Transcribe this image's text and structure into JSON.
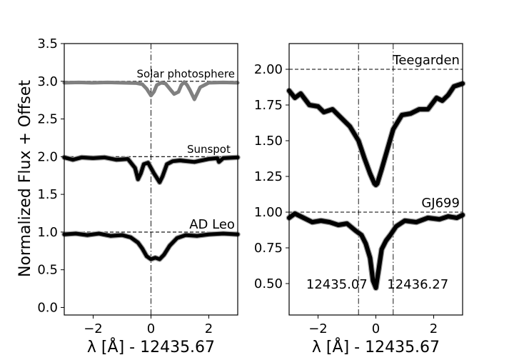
{
  "figure": {
    "ylabel": "Normalized Flux + Offset"
  },
  "chart_data": [
    {
      "type": "line",
      "panel": "left",
      "xlabel": "λ [Å] - 12435.67",
      "ylabel": "Normalized Flux + Offset",
      "xlim": [
        -3,
        3
      ],
      "ylim": [
        -0.1,
        3.5
      ],
      "xticks": [
        -2,
        0,
        2
      ],
      "xtick_labels": [
        "−2",
        "0",
        "2"
      ],
      "yticks": [
        0.0,
        0.5,
        1.0,
        1.5,
        2.0,
        2.5,
        3.0,
        3.5
      ],
      "ytick_labels": [
        "0.0",
        "0.5",
        "1.0",
        "1.5",
        "2.0",
        "2.5",
        "3.0",
        "3.5"
      ],
      "grid": false,
      "reference_lines": [
        {
          "y": 3.0,
          "style": "dashed"
        },
        {
          "y": 2.0,
          "style": "dashed"
        },
        {
          "y": 1.0,
          "style": "dashed"
        },
        {
          "x": 0.0,
          "style": "dashdot"
        }
      ],
      "series": [
        {
          "name": "Solar photosphere",
          "color": "#808080",
          "x": [
            -3.0,
            -2.5,
            -2.0,
            -1.5,
            -1.0,
            -0.5,
            -0.3,
            -0.15,
            0.0,
            0.1,
            0.2,
            0.35,
            0.5,
            0.65,
            0.8,
            0.95,
            1.05,
            1.15,
            1.25,
            1.35,
            1.5,
            1.7,
            2.0,
            2.5,
            3.0
          ],
          "y": [
            2.98,
            2.985,
            2.98,
            2.985,
            2.98,
            2.975,
            2.96,
            2.9,
            2.81,
            2.86,
            2.95,
            2.98,
            2.97,
            2.9,
            2.83,
            2.86,
            2.95,
            2.99,
            2.95,
            2.88,
            2.76,
            2.92,
            2.98,
            2.985,
            2.98
          ]
        },
        {
          "name": "Sunspot",
          "color": "#000000",
          "x": [
            -3.0,
            -2.7,
            -2.4,
            -2.0,
            -1.6,
            -1.2,
            -0.8,
            -0.55,
            -0.45,
            -0.35,
            -0.25,
            -0.1,
            0.0,
            0.1,
            0.2,
            0.3,
            0.4,
            0.55,
            0.75,
            1.0,
            1.5,
            2.0,
            2.3,
            2.35,
            2.5,
            3.0
          ],
          "y": [
            1.99,
            1.96,
            1.99,
            1.98,
            1.99,
            1.96,
            1.97,
            1.85,
            1.7,
            1.78,
            1.9,
            1.92,
            1.85,
            1.78,
            1.72,
            1.66,
            1.74,
            1.9,
            1.94,
            1.95,
            1.93,
            1.97,
            1.98,
            1.93,
            1.98,
            1.99
          ]
        },
        {
          "name": "AD Leo",
          "color": "#000000",
          "x": [
            -3.0,
            -2.6,
            -2.2,
            -1.8,
            -1.4,
            -1.0,
            -0.7,
            -0.45,
            -0.3,
            -0.15,
            0.0,
            0.15,
            0.3,
            0.45,
            0.65,
            0.9,
            1.2,
            1.6,
            2.0,
            2.5,
            3.0
          ],
          "y": [
            0.97,
            0.98,
            0.96,
            0.98,
            0.95,
            0.96,
            0.93,
            0.86,
            0.78,
            0.68,
            0.64,
            0.66,
            0.64,
            0.7,
            0.82,
            0.92,
            0.96,
            0.95,
            0.97,
            0.98,
            0.97
          ]
        }
      ],
      "annotations": [
        {
          "text": "Solar photosphere",
          "x": 2.9,
          "y": 3.02
        },
        {
          "text": "Sunspot",
          "x": 2.75,
          "y": 2.02
        },
        {
          "text": "AD Leo",
          "x": 2.9,
          "y": 1.02
        }
      ]
    },
    {
      "type": "line",
      "panel": "right",
      "xlabel": "λ [Å] - 12435.67",
      "xlim": [
        -3,
        3
      ],
      "ylim": [
        0.28,
        2.18
      ],
      "xticks": [
        -2,
        0,
        2
      ],
      "xtick_labels": [
        "−2",
        "0",
        "2"
      ],
      "yticks": [
        0.5,
        0.75,
        1.0,
        1.25,
        1.5,
        1.75,
        2.0
      ],
      "ytick_labels": [
        "0.50",
        "0.75",
        "1.00",
        "1.25",
        "1.50",
        "1.75",
        "2.00"
      ],
      "grid": false,
      "reference_lines": [
        {
          "y": 2.0,
          "style": "dashed"
        },
        {
          "y": 1.0,
          "style": "dashed"
        },
        {
          "x": -0.6,
          "style": "dashdot"
        },
        {
          "x": 0.6,
          "style": "dashdot"
        }
      ],
      "series": [
        {
          "name": "Teegarden",
          "color": "#000000",
          "x": [
            -3.0,
            -2.8,
            -2.6,
            -2.3,
            -2.0,
            -1.8,
            -1.5,
            -1.2,
            -0.9,
            -0.6,
            -0.4,
            -0.2,
            -0.05,
            0.0,
            0.05,
            0.2,
            0.4,
            0.6,
            0.9,
            1.2,
            1.5,
            1.8,
            2.1,
            2.3,
            2.5,
            2.7,
            3.0
          ],
          "y": [
            1.85,
            1.8,
            1.83,
            1.75,
            1.74,
            1.7,
            1.72,
            1.66,
            1.6,
            1.5,
            1.38,
            1.27,
            1.2,
            1.19,
            1.2,
            1.3,
            1.44,
            1.58,
            1.68,
            1.69,
            1.72,
            1.72,
            1.8,
            1.78,
            1.82,
            1.88,
            1.9
          ]
        },
        {
          "name": "GJ699",
          "color": "#000000",
          "x": [
            -3.0,
            -2.8,
            -2.5,
            -2.2,
            -1.9,
            -1.6,
            -1.3,
            -1.0,
            -0.7,
            -0.5,
            -0.35,
            -0.2,
            -0.1,
            0.0,
            0.1,
            0.2,
            0.35,
            0.5,
            0.7,
            1.0,
            1.4,
            1.8,
            2.2,
            2.5,
            2.8,
            3.0
          ],
          "y": [
            0.96,
            0.99,
            0.96,
            0.93,
            0.94,
            0.93,
            0.91,
            0.92,
            0.87,
            0.84,
            0.78,
            0.68,
            0.52,
            0.47,
            0.6,
            0.74,
            0.8,
            0.84,
            0.9,
            0.94,
            0.93,
            0.96,
            0.95,
            0.97,
            0.96,
            0.98
          ]
        }
      ],
      "annotations": [
        {
          "text": "Teegarden",
          "x": 2.9,
          "y": 2.02
        },
        {
          "text": "GJ699",
          "x": 2.9,
          "y": 1.02
        },
        {
          "text": "12435.07",
          "x": -1.35,
          "y": 0.5
        },
        {
          "text": "12436.27",
          "x": 1.45,
          "y": 0.5
        }
      ]
    }
  ]
}
